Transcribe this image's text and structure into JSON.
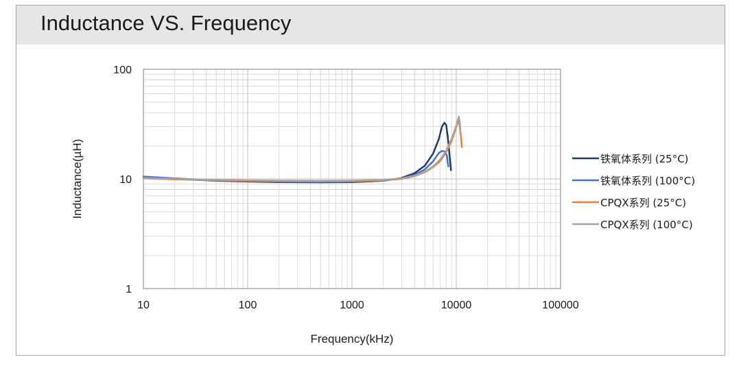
{
  "chart_data": {
    "type": "line",
    "title": "Inductance VS. Frequency",
    "xlabel": "Frequency(kHz)",
    "ylabel": "Inductance(µH)",
    "xscale": "log",
    "yscale": "log",
    "xlim": [
      10,
      100000
    ],
    "ylim": [
      1,
      100
    ],
    "x_ticks": [
      "10",
      "100",
      "1000",
      "10000",
      "100000"
    ],
    "y_ticks": [
      "100",
      "10",
      "1"
    ],
    "grid": true,
    "legend_position": "right",
    "series": [
      {
        "name": "铁氧体系列 (25°C)",
        "color": "#203864",
        "points": [
          [
            10,
            10.3
          ],
          [
            20,
            10
          ],
          [
            50,
            9.6
          ],
          [
            100,
            9.45
          ],
          [
            200,
            9.35
          ],
          [
            500,
            9.3
          ],
          [
            1000,
            9.35
          ],
          [
            2000,
            9.6
          ],
          [
            3000,
            10.2
          ],
          [
            4000,
            11.3
          ],
          [
            5000,
            13.2
          ],
          [
            6000,
            17
          ],
          [
            6800,
            23
          ],
          [
            7300,
            30
          ],
          [
            7700,
            32.5
          ],
          [
            8000,
            31
          ],
          [
            8300,
            24
          ],
          [
            8600,
            17
          ],
          [
            8900,
            12
          ]
        ]
      },
      {
        "name": "铁氧体系列 (100°C)",
        "color": "#4472c4",
        "points": [
          [
            10,
            10.5
          ],
          [
            20,
            10.1
          ],
          [
            50,
            9.7
          ],
          [
            100,
            9.55
          ],
          [
            200,
            9.45
          ],
          [
            500,
            9.4
          ],
          [
            1000,
            9.45
          ],
          [
            2000,
            9.65
          ],
          [
            3000,
            10.1
          ],
          [
            4000,
            10.9
          ],
          [
            5000,
            12.2
          ],
          [
            6000,
            14.5
          ],
          [
            6800,
            17.2
          ],
          [
            7300,
            18
          ],
          [
            7700,
            17.8
          ],
          [
            8100,
            16.5
          ],
          [
            8400,
            13
          ]
        ]
      },
      {
        "name": "CPQX系列 (25°C)",
        "color": "#ed7d31",
        "points": [
          [
            10,
            10.1
          ],
          [
            20,
            9.9
          ],
          [
            50,
            9.7
          ],
          [
            100,
            9.6
          ],
          [
            200,
            9.55
          ],
          [
            500,
            9.5
          ],
          [
            1000,
            9.55
          ],
          [
            2000,
            9.7
          ],
          [
            3000,
            10
          ],
          [
            4000,
            10.6
          ],
          [
            5000,
            11.5
          ],
          [
            6000,
            12.8
          ],
          [
            7000,
            14.5
          ],
          [
            8000,
            17.5
          ],
          [
            9000,
            22
          ],
          [
            9800,
            28
          ],
          [
            10400,
            34
          ],
          [
            10800,
            30
          ],
          [
            11100,
            24
          ],
          [
            11300,
            19.5
          ]
        ]
      },
      {
        "name": "CPQX系列 (100°C)",
        "color": "#a5a5a5",
        "points": [
          [
            10,
            10.2
          ],
          [
            20,
            10
          ],
          [
            50,
            9.8
          ],
          [
            100,
            9.7
          ],
          [
            200,
            9.65
          ],
          [
            500,
            9.6
          ],
          [
            1000,
            9.65
          ],
          [
            2000,
            9.8
          ],
          [
            3000,
            10.1
          ],
          [
            4000,
            10.7
          ],
          [
            5000,
            11.6
          ],
          [
            6000,
            13
          ],
          [
            7000,
            15
          ],
          [
            8000,
            18
          ],
          [
            9000,
            23
          ],
          [
            9800,
            29
          ],
          [
            10300,
            34
          ],
          [
            10600,
            37
          ],
          [
            10800,
            33
          ],
          [
            11000,
            27
          ]
        ]
      }
    ]
  }
}
